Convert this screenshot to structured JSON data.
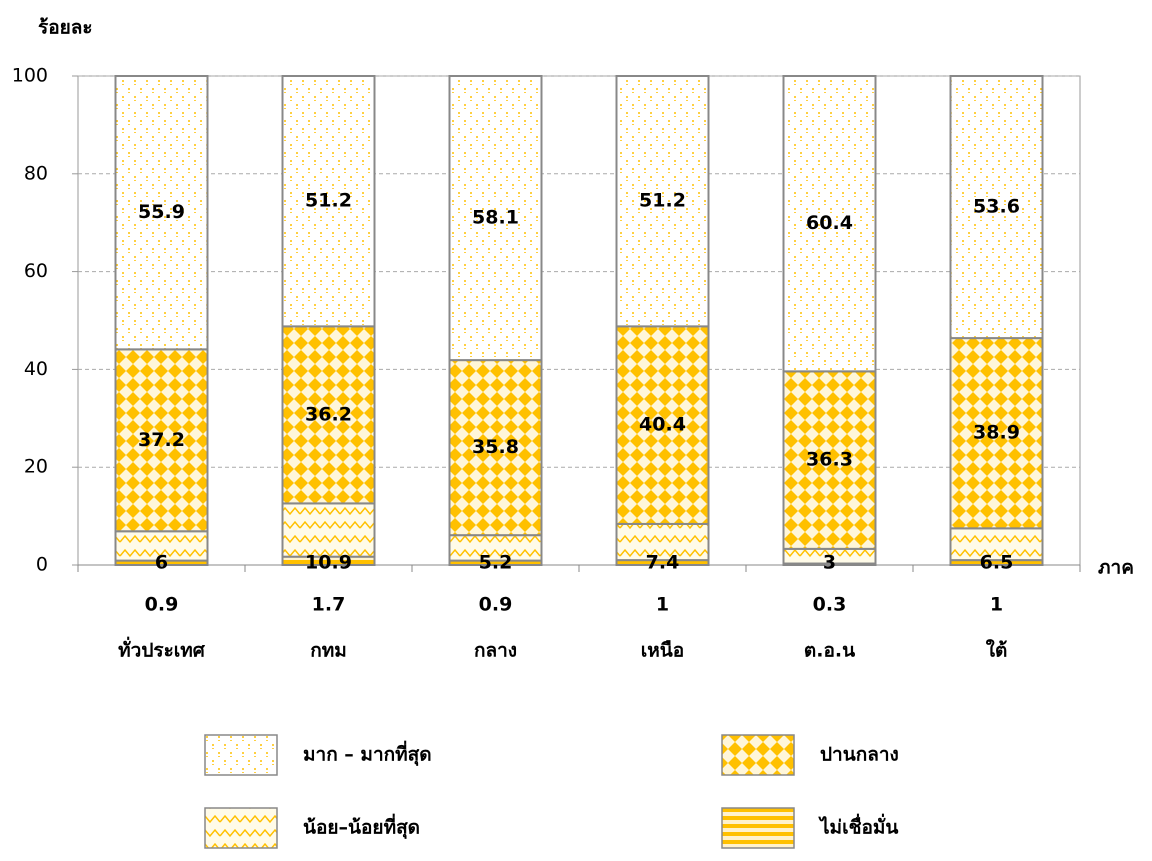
{
  "chart_data": {
    "type": "stacked_bar",
    "y_axis_label": "ร้อยละ",
    "x_axis_label": "ภาค",
    "categories": [
      "ทั่วประเทศ",
      "กทม",
      "กลาง",
      "เหนือ",
      "ต.อ.น",
      "ใต้"
    ],
    "series": [
      {
        "name": "ไม่เชื่อมั่น",
        "color": "#ffc000",
        "values": [
          0.9,
          1.7,
          0.9,
          1.0,
          0.3,
          1.0
        ]
      },
      {
        "name": "น้อย–น้อยที่สุด",
        "color": "#ffc000",
        "values": [
          6.0,
          10.9,
          5.2,
          7.4,
          3.0,
          6.5
        ]
      },
      {
        "name": "ปานกลาง",
        "color": "#ffc000",
        "values": [
          37.2,
          36.2,
          35.8,
          40.4,
          36.3,
          38.9
        ]
      },
      {
        "name": "มาก – มากที่สุด",
        "color": "#ffc000",
        "values": [
          55.9,
          51.2,
          58.1,
          51.2,
          60.4,
          53.6
        ]
      }
    ],
    "ylim": [
      0,
      100
    ],
    "yticks": [
      0,
      20,
      40,
      60,
      80,
      100
    ],
    "grid": true
  }
}
